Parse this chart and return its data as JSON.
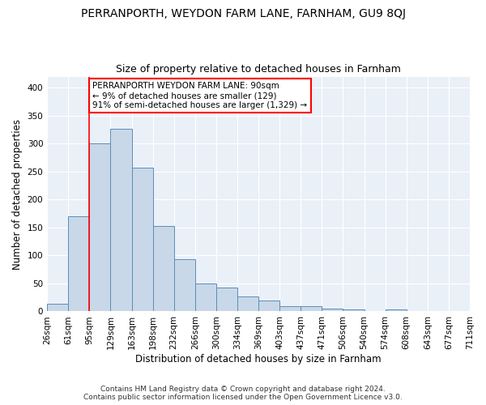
{
  "title": "PERRANPORTH, WEYDON FARM LANE, FARNHAM, GU9 8QJ",
  "subtitle": "Size of property relative to detached houses in Farnham",
  "xlabel": "Distribution of detached houses by size in Farnham",
  "ylabel": "Number of detached properties",
  "bin_labels": [
    "26sqm",
    "61sqm",
    "95sqm",
    "129sqm",
    "163sqm",
    "198sqm",
    "232sqm",
    "266sqm",
    "300sqm",
    "334sqm",
    "369sqm",
    "403sqm",
    "437sqm",
    "471sqm",
    "506sqm",
    "540sqm",
    "574sqm",
    "608sqm",
    "643sqm",
    "677sqm",
    "711sqm"
  ],
  "hist_values": [
    13,
    170,
    300,
    327,
    257,
    153,
    93,
    50,
    43,
    27,
    20,
    10,
    9,
    5,
    4,
    1,
    3,
    1,
    1,
    1
  ],
  "bar_color": "#c8d8e8",
  "bar_edge_color": "#5b8db8",
  "red_line_x": 2.0,
  "annotation_text": "PERRANPORTH WEYDON FARM LANE: 90sqm\n← 9% of detached houses are smaller (129)\n91% of semi-detached houses are larger (1,329) →",
  "annotation_box_color": "white",
  "annotation_edge_color": "red",
  "ylim": [
    0,
    420
  ],
  "yticks": [
    0,
    50,
    100,
    150,
    200,
    250,
    300,
    350,
    400
  ],
  "footer": "Contains HM Land Registry data © Crown copyright and database right 2024.\nContains public sector information licensed under the Open Government Licence v3.0.",
  "bg_color": "#eaf0f8",
  "grid_color": "#ffffff",
  "title_fontsize": 10,
  "subtitle_fontsize": 9,
  "tick_fontsize": 7.5,
  "ylabel_fontsize": 8.5,
  "xlabel_fontsize": 8.5,
  "footer_fontsize": 6.5
}
